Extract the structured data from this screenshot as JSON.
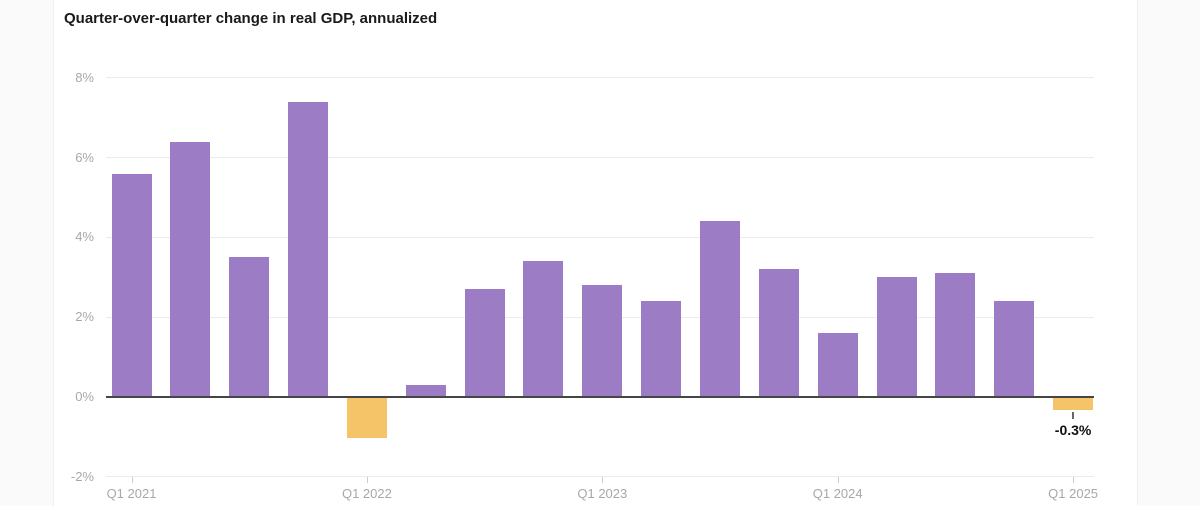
{
  "page": {
    "background": "#fafafa",
    "card_background": "#ffffff"
  },
  "chart_data": {
    "type": "bar",
    "title": "Quarter-over-quarter change in real GDP, annualized",
    "unit": "%",
    "categories": [
      "Q1 2021",
      "Q2 2021",
      "Q3 2021",
      "Q4 2021",
      "Q1 2022",
      "Q2 2022",
      "Q3 2022",
      "Q4 2022",
      "Q1 2023",
      "Q2 2023",
      "Q3 2023",
      "Q4 2023",
      "Q1 2024",
      "Q2 2024",
      "Q3 2024",
      "Q4 2024",
      "Q1 2025"
    ],
    "values": [
      5.6,
      6.4,
      3.5,
      7.4,
      -1.0,
      0.3,
      2.7,
      3.4,
      2.8,
      2.4,
      4.4,
      3.2,
      1.6,
      3.0,
      3.1,
      2.4,
      -0.3
    ],
    "y_axis": {
      "ticks": [
        8,
        6,
        4,
        2,
        0,
        -2
      ],
      "tick_labels": [
        "8%",
        "6%",
        "4%",
        "2%",
        "0%",
        "-2%"
      ],
      "range": [
        -2,
        8
      ]
    },
    "x_axis": {
      "tick_labels": [
        "Q1 2021",
        "Q1 2022",
        "Q1 2023",
        "Q1 2024",
        "Q1 2025"
      ],
      "tick_every_quarters": 4
    },
    "grid": "horizontal",
    "legend": "none",
    "annotation": {
      "text": "-0.3%",
      "category": "Q1 2025"
    },
    "colors": {
      "positive_bar": "#9c7dc5",
      "negative_bar": "#f5c368",
      "zero_line": "#454545",
      "gridline": "#ececec",
      "axis_text": "#a8a8a8",
      "tick": "#cccccc",
      "title_text": "#1a1a1a",
      "annotation_text": "#111111",
      "annotation_tick": "#666666"
    }
  }
}
